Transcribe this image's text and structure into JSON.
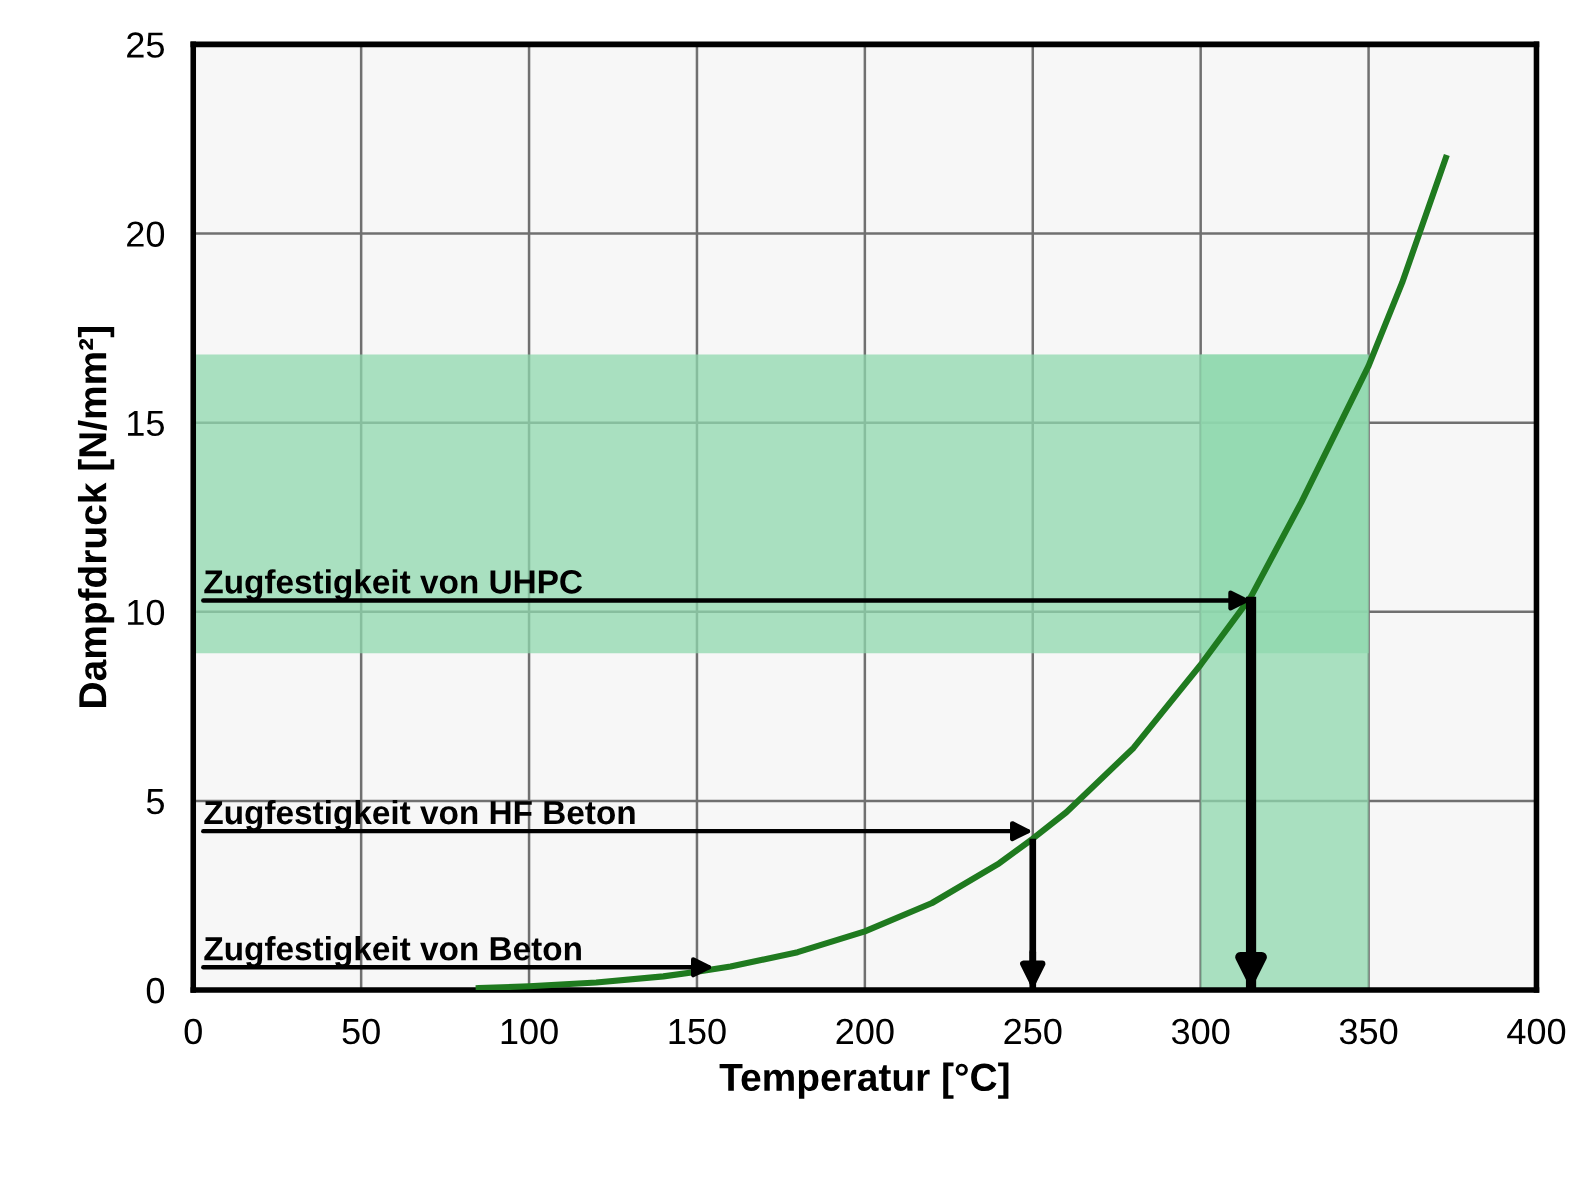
{
  "chart_data": {
    "type": "line",
    "xlabel": "Temperatur [°C]",
    "ylabel": "Dampfdruck [N/mm²]",
    "x": [
      85,
      100,
      120,
      140,
      150,
      160,
      180,
      200,
      220,
      240,
      250,
      260,
      280,
      300,
      315,
      330,
      350,
      360,
      373
    ],
    "series": [
      {
        "color": "#1f7a1f",
        "values": [
          0.05,
          0.1,
          0.2,
          0.36,
          0.48,
          0.62,
          1.0,
          1.55,
          2.3,
          3.35,
          4.0,
          4.7,
          6.4,
          8.6,
          10.4,
          12.9,
          16.5,
          18.7,
          22.0
        ]
      }
    ],
    "xlim": [
      0,
      400
    ],
    "ylim": [
      0,
      25
    ],
    "xticks": [
      0,
      50,
      100,
      150,
      200,
      250,
      300,
      350,
      400
    ],
    "yticks": [
      0,
      5,
      10,
      15,
      20,
      25
    ],
    "grid": true,
    "marker": "none",
    "line_style": "solid",
    "bands": [
      {
        "axis": "y",
        "from": 8.9,
        "to": 16.8,
        "color": "#8fd8ad",
        "label": null
      },
      {
        "axis": "x",
        "from": 300,
        "to": 350,
        "color": "#8fd8ad",
        "label": null
      }
    ],
    "ref_lines": [
      {
        "axis": "x",
        "value": 250,
        "label": null
      },
      {
        "axis": "x",
        "value": 315,
        "label": null
      }
    ],
    "annotations": [
      {
        "text": "Zugfestigkeit von Beton",
        "x": 155,
        "y": 0.6
      },
      {
        "text": "Zugfestigkeit von HF Beton",
        "x": 250,
        "y": 4.2
      },
      {
        "text": "Zugfestigkeit von UHPC",
        "x": 315,
        "y": 10.3
      }
    ]
  }
}
